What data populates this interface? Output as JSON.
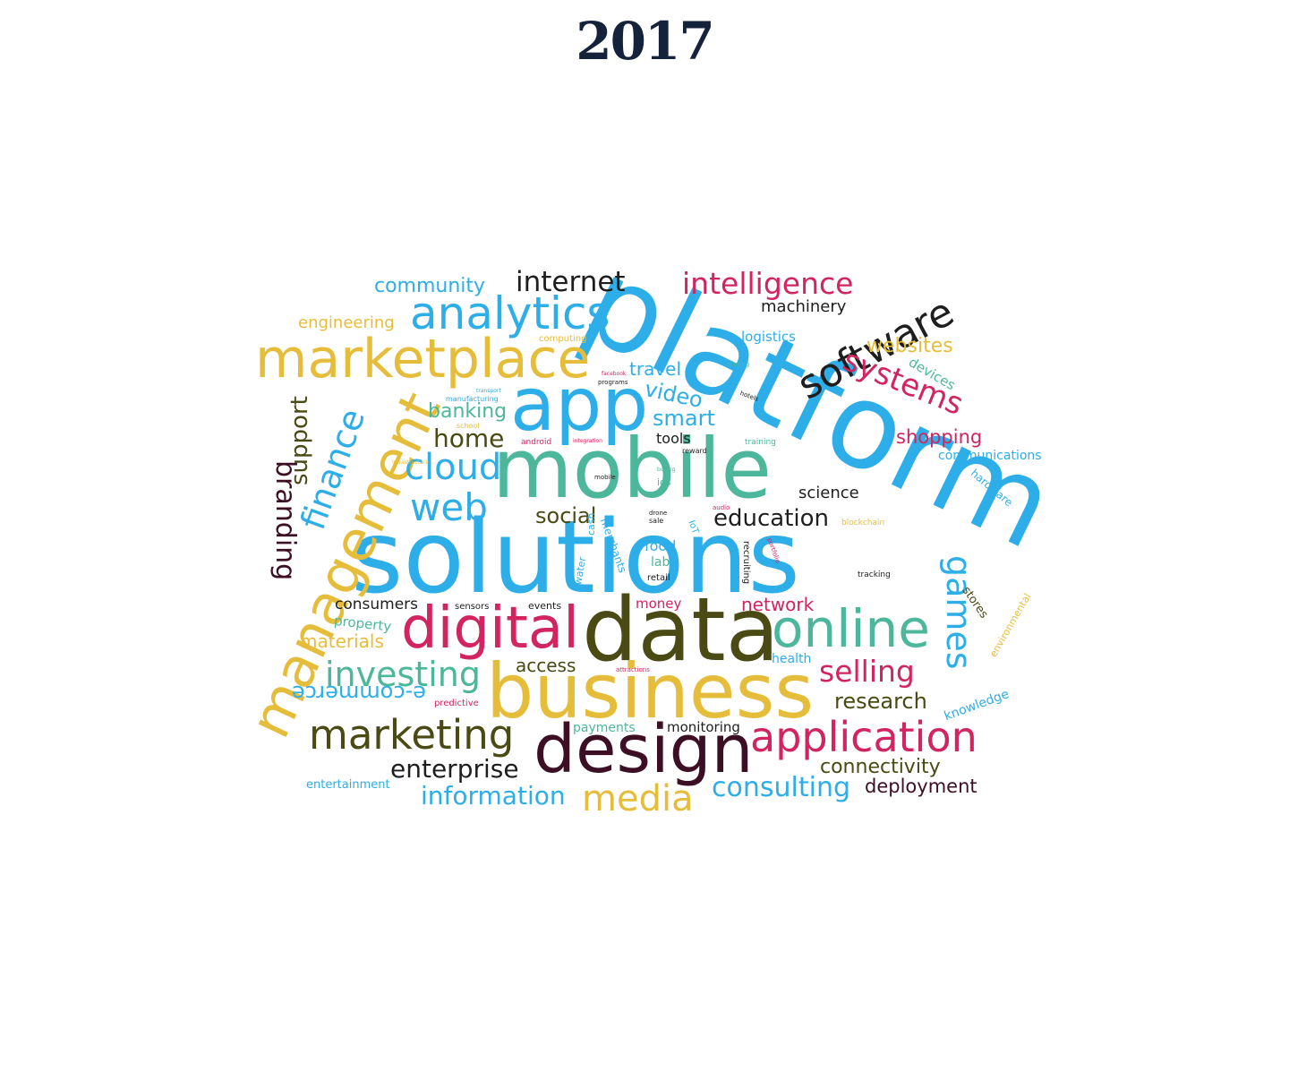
{
  "title": "2017",
  "colors": {
    "blue": "#2eaee8",
    "teal": "#4cb79a",
    "gold": "#e6bd3b",
    "crimson": "#d2245f",
    "olive": "#4a4a14",
    "maroon": "#3d0f24",
    "dark": "#1e1e1e"
  },
  "words": [
    {
      "text": "platform",
      "color": "blue"
    },
    {
      "text": "solutions",
      "color": "blue"
    },
    {
      "text": "mobile",
      "color": "teal"
    },
    {
      "text": "data",
      "color": "olive"
    },
    {
      "text": "business",
      "color": "gold"
    },
    {
      "text": "design",
      "color": "maroon"
    },
    {
      "text": "app",
      "color": "blue"
    },
    {
      "text": "digital",
      "color": "crimson"
    },
    {
      "text": "marketplace",
      "color": "gold"
    },
    {
      "text": "management",
      "color": "gold"
    },
    {
      "text": "online",
      "color": "teal"
    },
    {
      "text": "analytics",
      "color": "blue"
    },
    {
      "text": "application",
      "color": "crimson"
    },
    {
      "text": "marketing",
      "color": "olive"
    },
    {
      "text": "software",
      "color": "dark"
    },
    {
      "text": "web",
      "color": "blue"
    },
    {
      "text": "cloud",
      "color": "blue"
    },
    {
      "text": "investing",
      "color": "teal"
    },
    {
      "text": "games",
      "color": "blue"
    },
    {
      "text": "media",
      "color": "gold"
    },
    {
      "text": "systems",
      "color": "crimson"
    },
    {
      "text": "finance",
      "color": "blue"
    },
    {
      "text": "intelligence",
      "color": "crimson"
    },
    {
      "text": "internet",
      "color": "dark"
    },
    {
      "text": "consulting",
      "color": "blue"
    },
    {
      "text": "selling",
      "color": "crimson"
    },
    {
      "text": "information",
      "color": "blue"
    },
    {
      "text": "enterprise",
      "color": "dark"
    },
    {
      "text": "branding",
      "color": "maroon"
    },
    {
      "text": "home",
      "color": "olive"
    },
    {
      "text": "support",
      "color": "olive"
    },
    {
      "text": "e-commerce",
      "color": "blue"
    },
    {
      "text": "education",
      "color": "dark"
    },
    {
      "text": "community",
      "color": "blue"
    },
    {
      "text": "websites",
      "color": "gold"
    },
    {
      "text": "smart",
      "color": "blue"
    },
    {
      "text": "video",
      "color": "blue"
    },
    {
      "text": "banking",
      "color": "teal"
    },
    {
      "text": "social",
      "color": "olive"
    },
    {
      "text": "research",
      "color": "olive"
    },
    {
      "text": "connectivity",
      "color": "olive"
    },
    {
      "text": "deployment",
      "color": "maroon"
    },
    {
      "text": "shopping",
      "color": "crimson"
    },
    {
      "text": "engineering",
      "color": "gold"
    },
    {
      "text": "machinery",
      "color": "dark"
    },
    {
      "text": "travel",
      "color": "blue"
    },
    {
      "text": "materials",
      "color": "gold"
    },
    {
      "text": "access",
      "color": "olive"
    },
    {
      "text": "network",
      "color": "crimson"
    },
    {
      "text": "consumers",
      "color": "dark"
    },
    {
      "text": "science",
      "color": "dark"
    },
    {
      "text": "communications",
      "color": "blue"
    },
    {
      "text": "logistics",
      "color": "blue"
    },
    {
      "text": "devices",
      "color": "teal"
    },
    {
      "text": "tools",
      "color": "dark"
    },
    {
      "text": "property",
      "color": "teal"
    },
    {
      "text": "knowledge",
      "color": "blue"
    },
    {
      "text": "entertainment",
      "color": "blue"
    },
    {
      "text": "monitoring",
      "color": "dark"
    },
    {
      "text": "payments",
      "color": "teal"
    },
    {
      "text": "health",
      "color": "blue"
    },
    {
      "text": "money",
      "color": "crimson"
    },
    {
      "text": "food",
      "color": "blue"
    },
    {
      "text": "lab",
      "color": "teal"
    },
    {
      "text": "stores",
      "color": "olive"
    },
    {
      "text": "hardware",
      "color": "blue"
    },
    {
      "text": "environmental",
      "color": "gold"
    },
    {
      "text": "merchants",
      "color": "blue"
    },
    {
      "text": "water",
      "color": "blue"
    },
    {
      "text": "cash",
      "color": "blue"
    },
    {
      "text": "recruiting",
      "color": "dark"
    },
    {
      "text": "events",
      "color": "dark"
    },
    {
      "text": "sensors",
      "color": "dark"
    },
    {
      "text": "predictive",
      "color": "crimson"
    },
    {
      "text": "ios",
      "color": "teal"
    },
    {
      "text": "retail",
      "color": "dark"
    },
    {
      "text": "IoT",
      "color": "blue"
    },
    {
      "text": "computing",
      "color": "gold"
    },
    {
      "text": "android",
      "color": "crimson"
    },
    {
      "text": "training",
      "color": "teal"
    },
    {
      "text": "tracking",
      "color": "dark"
    },
    {
      "text": "blockchain",
      "color": "gold"
    },
    {
      "text": "school",
      "color": "gold"
    },
    {
      "text": "programs",
      "color": "dark"
    },
    {
      "text": "manufacturing",
      "color": "blue"
    },
    {
      "text": "reward",
      "color": "dark"
    },
    {
      "text": "trading",
      "color": "teal"
    },
    {
      "text": "hotels",
      "color": "dark"
    },
    {
      "text": "drone",
      "color": "dark"
    },
    {
      "text": "sale",
      "color": "dark"
    },
    {
      "text": "mobile",
      "color": "dark"
    },
    {
      "text": "audio",
      "color": "crimson"
    },
    {
      "text": "portfolio",
      "color": "crimson"
    },
    {
      "text": "integration",
      "color": "crimson"
    },
    {
      "text": "attractions",
      "color": "crimson"
    },
    {
      "text": "buying",
      "color": "teal"
    },
    {
      "text": "infrastructure",
      "color": "gold"
    },
    {
      "text": "facebook",
      "color": "crimson"
    },
    {
      "text": "transport",
      "color": "blue"
    }
  ]
}
